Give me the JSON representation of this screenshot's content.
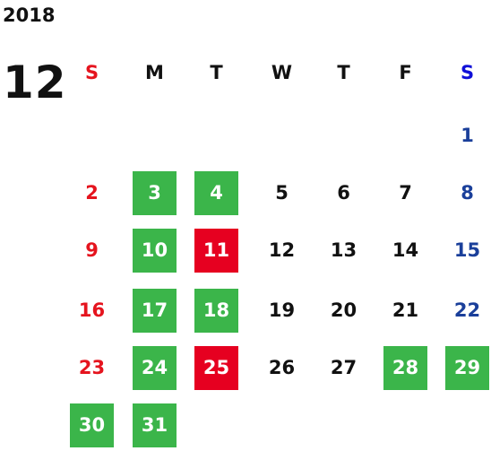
{
  "calendar": {
    "year": "2018",
    "month": "12",
    "weekday_headers": [
      "S",
      "M",
      "T",
      "W",
      "T",
      "F",
      "S"
    ],
    "colors": {
      "sunday": "#e5141e",
      "saturday": "#1a3f9a",
      "weekday": "#111111",
      "highlight_green": "#3bb54a",
      "highlight_red": "#e60020"
    },
    "weeks": [
      [
        {
          "day": ""
        },
        {
          "day": ""
        },
        {
          "day": ""
        },
        {
          "day": ""
        },
        {
          "day": ""
        },
        {
          "day": ""
        },
        {
          "day": "1",
          "style": "saturday"
        }
      ],
      [
        {
          "day": "2",
          "style": "sunday"
        },
        {
          "day": "3",
          "style": "green"
        },
        {
          "day": "4",
          "style": "green"
        },
        {
          "day": "5",
          "style": "weekday"
        },
        {
          "day": "6",
          "style": "weekday"
        },
        {
          "day": "7",
          "style": "weekday"
        },
        {
          "day": "8",
          "style": "saturday"
        }
      ],
      [
        {
          "day": "9",
          "style": "sunday"
        },
        {
          "day": "10",
          "style": "green"
        },
        {
          "day": "11",
          "style": "red"
        },
        {
          "day": "12",
          "style": "weekday"
        },
        {
          "day": "13",
          "style": "weekday"
        },
        {
          "day": "14",
          "style": "weekday"
        },
        {
          "day": "15",
          "style": "saturday"
        }
      ],
      [
        {
          "day": "16",
          "style": "sunday"
        },
        {
          "day": "17",
          "style": "green"
        },
        {
          "day": "18",
          "style": "green"
        },
        {
          "day": "19",
          "style": "weekday"
        },
        {
          "day": "20",
          "style": "weekday"
        },
        {
          "day": "21",
          "style": "weekday"
        },
        {
          "day": "22",
          "style": "saturday"
        }
      ],
      [
        {
          "day": "23",
          "style": "sunday"
        },
        {
          "day": "24",
          "style": "green"
        },
        {
          "day": "25",
          "style": "red"
        },
        {
          "day": "26",
          "style": "weekday"
        },
        {
          "day": "27",
          "style": "weekday"
        },
        {
          "day": "28",
          "style": "green"
        },
        {
          "day": "29",
          "style": "green"
        }
      ],
      [
        {
          "day": "30",
          "style": "green"
        },
        {
          "day": "31",
          "style": "green"
        },
        {
          "day": ""
        },
        {
          "day": ""
        },
        {
          "day": ""
        },
        {
          "day": ""
        },
        {
          "day": ""
        }
      ]
    ]
  }
}
